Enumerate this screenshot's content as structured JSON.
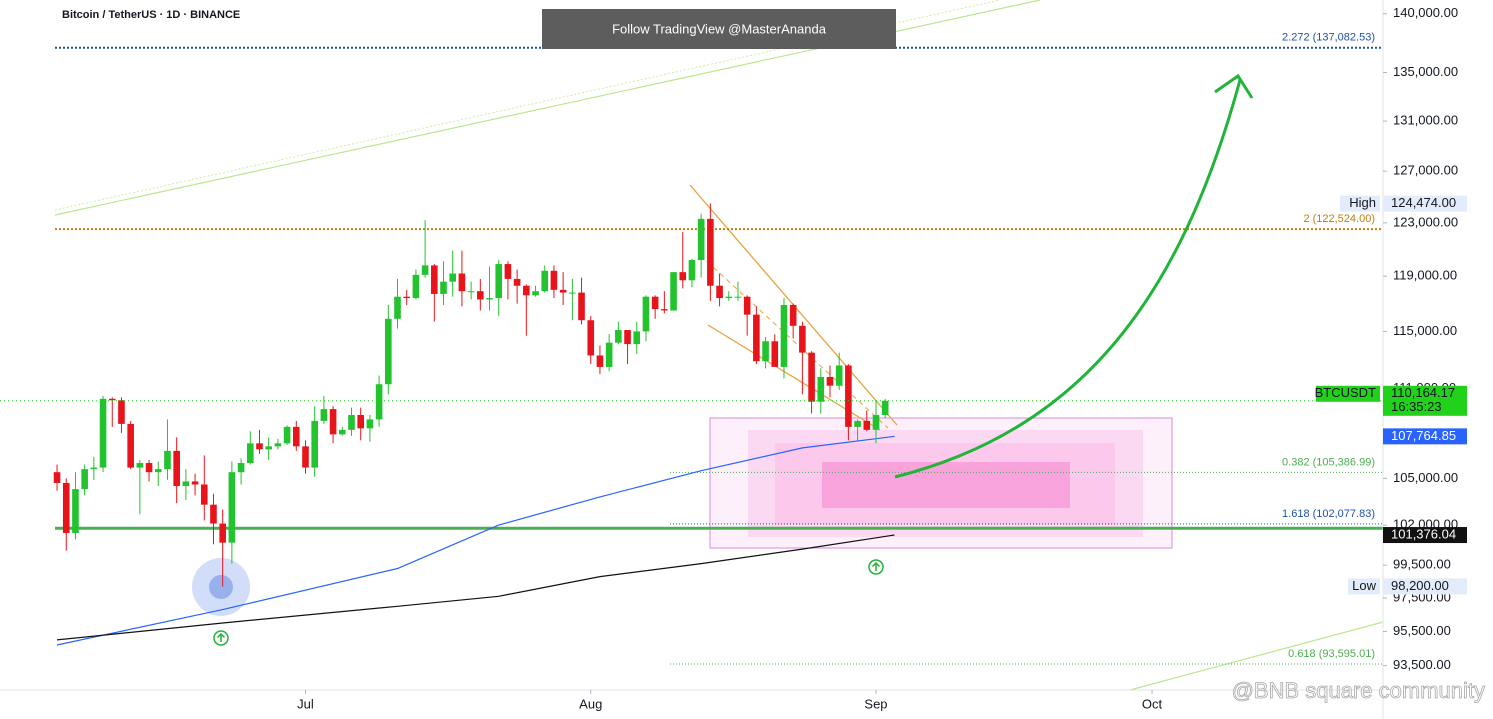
{
  "header": {
    "symbol": "Bitcoin / TetherUS · 1D · BINANCE",
    "banner": "Follow TradingView @MasterAnanda",
    "watermark": "@BNB square community"
  },
  "chart_data": {
    "type": "candlestick",
    "log_scale": true,
    "up_color": "#22c32e",
    "down_color": "#e8141b",
    "ylim": [
      92100,
      141200
    ],
    "yticks": [
      {
        "value": 140000,
        "label": "140,000.00"
      },
      {
        "value": 135000,
        "label": "135,000.00"
      },
      {
        "value": 131000,
        "label": "131,000.00"
      },
      {
        "value": 127000,
        "label": "127,000.00"
      },
      {
        "value": 123000,
        "label": "123,000.00"
      },
      {
        "value": 119000,
        "label": "119,000.00"
      },
      {
        "value": 115000,
        "label": "115,000.00"
      },
      {
        "value": 111000,
        "label": "111,000.00"
      },
      {
        "value": 105000,
        "label": "105,000.00"
      },
      {
        "value": 102000,
        "label": "102,000.00"
      },
      {
        "value": 99500,
        "label": "99,500.00"
      },
      {
        "value": 97500,
        "label": "97,500.00"
      },
      {
        "value": 95500,
        "label": "95,500.00"
      },
      {
        "value": 93500,
        "label": "93,500.00"
      }
    ],
    "xlim": [
      -6.2,
      144.1
    ],
    "xticks": [
      {
        "value": 27,
        "label": "Jul"
      },
      {
        "value": 58,
        "label": "Aug"
      },
      {
        "value": 89,
        "label": "Sep"
      },
      {
        "value": 119,
        "label": "Oct"
      }
    ],
    "candles": [
      [
        105400,
        105900,
        104200,
        104700
      ],
      [
        104700,
        105000,
        100400,
        101500
      ],
      [
        101500,
        105400,
        101100,
        104300
      ],
      [
        104300,
        105900,
        103900,
        105600
      ],
      [
        105600,
        106400,
        104900,
        105700
      ],
      [
        105700,
        110500,
        105400,
        110300
      ],
      [
        110300,
        110400,
        108400,
        110200
      ],
      [
        110200,
        110400,
        108000,
        108600
      ],
      [
        108600,
        108800,
        105600,
        105700
      ],
      [
        105700,
        106200,
        102700,
        106000
      ],
      [
        106000,
        106200,
        104800,
        105400
      ],
      [
        105400,
        106100,
        104500,
        105600
      ],
      [
        105600,
        108900,
        104900,
        106800
      ],
      [
        106800,
        107700,
        103400,
        104500
      ],
      [
        104500,
        105600,
        103600,
        104800
      ],
      [
        104800,
        105300,
        103900,
        104600
      ],
      [
        104600,
        106500,
        102300,
        103300
      ],
      [
        103300,
        104000,
        100800,
        102100
      ],
      [
        102100,
        103000,
        98200,
        100900
      ],
      [
        100900,
        106100,
        99600,
        105400
      ],
      [
        105400,
        106300,
        104600,
        106000
      ],
      [
        106000,
        108100,
        105900,
        107300
      ],
      [
        107300,
        108200,
        106600,
        106900
      ],
      [
        106900,
        107700,
        106200,
        107100
      ],
      [
        107100,
        107600,
        106900,
        107300
      ],
      [
        107300,
        108500,
        107200,
        108400
      ],
      [
        108400,
        108800,
        106800,
        107100
      ],
      [
        107100,
        107500,
        105300,
        105700
      ],
      [
        105700,
        109800,
        105100,
        108800
      ],
      [
        108800,
        110500,
        108600,
        109600
      ],
      [
        109600,
        109800,
        107300,
        107900
      ],
      [
        107900,
        108400,
        107800,
        108200
      ],
      [
        108200,
        109700,
        107800,
        109200
      ],
      [
        109200,
        109700,
        107500,
        108300
      ],
      [
        108300,
        109200,
        107400,
        108900
      ],
      [
        108900,
        111900,
        108400,
        111300
      ],
      [
        111300,
        116900,
        110600,
        115900
      ],
      [
        115900,
        118800,
        115200,
        117500
      ],
      [
        117500,
        118000,
        116900,
        117400
      ],
      [
        117400,
        119500,
        117300,
        119100
      ],
      [
        119100,
        123200,
        118900,
        119800
      ],
      [
        119800,
        119900,
        115700,
        117700
      ],
      [
        117700,
        120100,
        116900,
        118600
      ],
      [
        118600,
        120900,
        117500,
        119200
      ],
      [
        119200,
        120900,
        116800,
        117900
      ],
      [
        117900,
        118600,
        117300,
        117900
      ],
      [
        117900,
        118800,
        116500,
        117300
      ],
      [
        117300,
        119700,
        116500,
        117400
      ],
      [
        117400,
        120200,
        116100,
        119900
      ],
      [
        119900,
        120100,
        117300,
        118800
      ],
      [
        118800,
        119500,
        117000,
        118300
      ],
      [
        118300,
        118400,
        114700,
        117600
      ],
      [
        117600,
        118300,
        117500,
        117900
      ],
      [
        117900,
        119800,
        117800,
        119400
      ],
      [
        119400,
        119800,
        117400,
        118000
      ],
      [
        118000,
        119300,
        116900,
        117800
      ],
      [
        117800,
        118800,
        115800,
        117800
      ],
      [
        117800,
        118900,
        115500,
        115800
      ],
      [
        115800,
        116100,
        112700,
        113300
      ],
      [
        113300,
        114000,
        112000,
        112500
      ],
      [
        112500,
        114800,
        112200,
        114200
      ],
      [
        114200,
        115700,
        114100,
        115100
      ],
      [
        115100,
        115100,
        112700,
        114100
      ],
      [
        114100,
        115700,
        113400,
        115000
      ],
      [
        115000,
        117600,
        114300,
        117500
      ],
      [
        117500,
        117600,
        115900,
        116600
      ],
      [
        116600,
        117900,
        116300,
        116500
      ],
      [
        116500,
        119300,
        116500,
        119300
      ],
      [
        119300,
        122300,
        118100,
        118700
      ],
      [
        118700,
        120300,
        118200,
        120200
      ],
      [
        120200,
        123700,
        118900,
        123300
      ],
      [
        123300,
        124474,
        117200,
        118300
      ],
      [
        118300,
        119200,
        116800,
        117400
      ],
      [
        117400,
        117900,
        117200,
        117500
      ],
      [
        117500,
        118600,
        117200,
        117500
      ],
      [
        117500,
        117600,
        114700,
        116200
      ],
      [
        116200,
        116800,
        112700,
        112900
      ],
      [
        112900,
        114600,
        112400,
        114300
      ],
      [
        114300,
        114800,
        112600,
        112500
      ],
      [
        112500,
        117400,
        111700,
        116900
      ],
      [
        116900,
        117000,
        114500,
        115400
      ],
      [
        115400,
        115700,
        110600,
        113500
      ],
      [
        113500,
        113600,
        109300,
        110100
      ],
      [
        110100,
        112400,
        109300,
        111800
      ],
      [
        111800,
        112600,
        110400,
        111200
      ],
      [
        111200,
        113500,
        110900,
        112600
      ],
      [
        112600,
        112700,
        107500,
        108400
      ],
      [
        108400,
        108900,
        107400,
        108800
      ],
      [
        108800,
        109500,
        108100,
        108200
      ],
      [
        108200,
        110200,
        107300,
        109200
      ],
      [
        109200,
        110300,
        109000,
        110164.17
      ]
    ],
    "moving_averages": [
      {
        "color": "#2962ff",
        "x": [
          0,
          18,
          37,
          48,
          59,
          70,
          81,
          91
        ],
        "values": [
          94700,
          96800,
          99300,
          102000,
          103800,
          105500,
          107000,
          107764.85
        ]
      },
      {
        "color": "#111111",
        "x": [
          0,
          18,
          37,
          48,
          59,
          70,
          81,
          91
        ],
        "values": [
          95000,
          96000,
          97000,
          97600,
          98800,
          99600,
          100500,
          101376.04
        ]
      }
    ],
    "levels": [
      {
        "label": "2.272 (137,082.53)",
        "value": 137082.53,
        "color": "#1e53a8"
      },
      {
        "label": "2 (122,524.00)",
        "value": 122524,
        "color": "#c27c0e"
      },
      {
        "label": "0.382 (105,386.99)",
        "value": 105386.99,
        "color": "#4caf50"
      },
      {
        "label": "1.618 (102,077.83)",
        "value": 102077.83,
        "color": "#1e53a8"
      },
      {
        "label": "0.618 (93,595.01)",
        "value": 93595.01,
        "color": "#4caf50"
      }
    ],
    "support_level": {
      "value": 101800,
      "color": "#4caf50"
    },
    "markers": [
      {
        "name": "High",
        "value": 124474,
        "value_label": "124,474.00",
        "color": "#e3ecfa",
        "text_color": "#131722"
      },
      {
        "name": "BTCUSDT",
        "value": 110164.17,
        "value_label": "110,164.17",
        "countdown": "16:35:23",
        "color": "#22d11a",
        "text_color": "#131722"
      },
      {
        "value": 107764.85,
        "value_label": "107,764.85",
        "color": "#2962ff",
        "text_color": "#ffffff"
      },
      {
        "value": 101376.04,
        "value_label": "101,376.04",
        "color": "#111111",
        "text_color": "#ffffff"
      },
      {
        "name": "Low",
        "value": 98200,
        "value_label": "98,200.00",
        "color": "#e3ecfa",
        "text_color": "#131722"
      }
    ]
  }
}
